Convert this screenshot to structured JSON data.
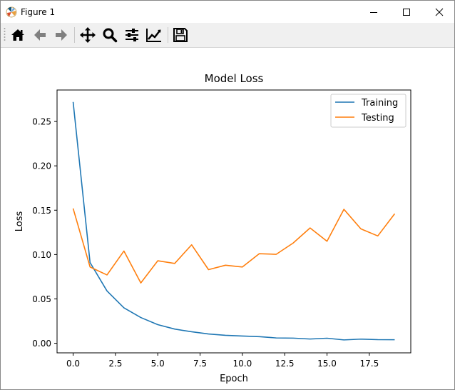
{
  "window": {
    "title": "Figure 1",
    "icon": "matplotlib-icon",
    "controls": [
      "minimize-icon",
      "maximize-icon",
      "close-icon"
    ]
  },
  "toolbar": {
    "tools": [
      {
        "name": "home",
        "icon": "home-icon"
      },
      {
        "name": "back",
        "icon": "arrow-left-icon"
      },
      {
        "name": "forward",
        "icon": "arrow-right-icon"
      },
      {
        "name": "pan",
        "icon": "move-icon"
      },
      {
        "name": "zoom",
        "icon": "magnifier-icon"
      },
      {
        "name": "configure-subplots",
        "icon": "sliders-icon"
      },
      {
        "name": "edit-axis",
        "icon": "line-chart-icon"
      },
      {
        "name": "save",
        "icon": "floppy-disk-icon"
      }
    ]
  },
  "chart_data": {
    "type": "line",
    "title": "Model Loss",
    "xlabel": "Epoch",
    "ylabel": "Loss",
    "xlim": [
      -0.95,
      19.95
    ],
    "ylim": [
      -0.0108,
      0.2855
    ],
    "xticks": [
      0.0,
      2.5,
      5.0,
      7.5,
      10.0,
      12.5,
      15.0,
      17.5
    ],
    "xtick_labels": [
      "0.0",
      "2.5",
      "5.0",
      "7.5",
      "10.0",
      "12.5",
      "15.0",
      "17.5"
    ],
    "yticks": [
      0.0,
      0.05,
      0.1,
      0.15,
      0.2,
      0.25
    ],
    "ytick_labels": [
      "0.00",
      "0.05",
      "0.10",
      "0.15",
      "0.20",
      "0.25"
    ],
    "grid": false,
    "legend": "top-right",
    "x": [
      0,
      1,
      2,
      3,
      4,
      5,
      6,
      7,
      8,
      9,
      10,
      11,
      12,
      13,
      14,
      15,
      16,
      17,
      18,
      19
    ],
    "series": [
      {
        "name": "Training",
        "color": "#1f77b4",
        "values": [
          0.272,
          0.091,
          0.059,
          0.04,
          0.029,
          0.021,
          0.016,
          0.013,
          0.0105,
          0.009,
          0.0082,
          0.0075,
          0.006,
          0.0058,
          0.0048,
          0.0057,
          0.0038,
          0.0047,
          0.0041,
          0.004
        ]
      },
      {
        "name": "Testing",
        "color": "#ff7f0e",
        "values": [
          0.152,
          0.086,
          0.077,
          0.104,
          0.068,
          0.093,
          0.09,
          0.111,
          0.083,
          0.088,
          0.086,
          0.101,
          0.1003,
          0.113,
          0.13,
          0.115,
          0.151,
          0.129,
          0.121,
          0.146
        ]
      }
    ]
  }
}
